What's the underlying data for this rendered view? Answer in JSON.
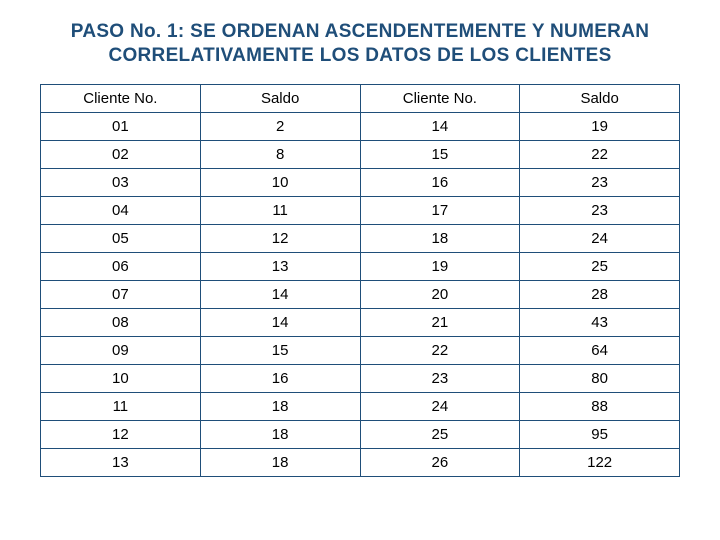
{
  "title": {
    "line1": "PASO No. 1: SE ORDENAN  ASCENDENTEMENTE Y NUMERAN",
    "line2": "CORRELATIVAMENTE LOS DATOS DE LOS CLIENTES",
    "color": "#1f4e79",
    "fontsize": 19
  },
  "table": {
    "type": "table",
    "border_color": "#1f4e79",
    "background_color": "#ffffff",
    "text_color": "#000000",
    "cell_fontsize": 15,
    "columns": [
      "Cliente No.",
      "Saldo",
      "Cliente No.",
      "Saldo"
    ],
    "rows": [
      [
        "01",
        "2",
        "14",
        "19"
      ],
      [
        "02",
        "8",
        "15",
        "22"
      ],
      [
        "03",
        "10",
        "16",
        "23"
      ],
      [
        "04",
        "11",
        "17",
        "23"
      ],
      [
        "05",
        "12",
        "18",
        "24"
      ],
      [
        "06",
        "13",
        "19",
        "25"
      ],
      [
        "07",
        "14",
        "20",
        "28"
      ],
      [
        "08",
        "14",
        "21",
        "43"
      ],
      [
        "09",
        "15",
        "22",
        "64"
      ],
      [
        "10",
        "16",
        "23",
        "80"
      ],
      [
        "11",
        "18",
        "24",
        "88"
      ],
      [
        "12",
        "18",
        "25",
        "95"
      ],
      [
        "13",
        "18",
        "26",
        "122"
      ]
    ]
  }
}
